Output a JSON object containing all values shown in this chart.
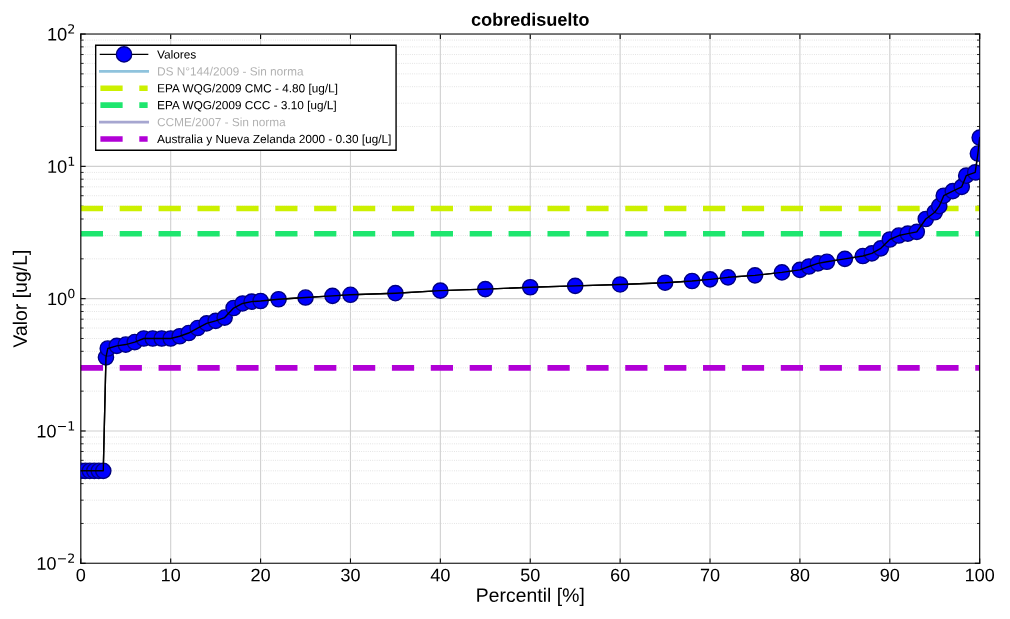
{
  "chart_data": {
    "type": "line",
    "title": "cobredisuelto",
    "xlabel": "Percentil [%]",
    "ylabel": "Valor [ug/L]",
    "log": "y",
    "grid": true,
    "legend": "top left",
    "xlim": [
      0,
      100
    ],
    "xticks": [
      0,
      10,
      20,
      30,
      40,
      50,
      60,
      70,
      80,
      90,
      100
    ],
    "ylim": [
      0.01,
      100
    ],
    "yticks": [
      {
        "value": 0.01,
        "label": "10$^{−2}$"
      },
      {
        "value": 0.1,
        "label": "10$^{−1}$"
      },
      {
        "value": 1,
        "label": "10$^{0}$"
      },
      {
        "value": 10,
        "label": "10$^{1}$"
      },
      {
        "value": 100,
        "label": "10$^{2}$"
      }
    ],
    "series": [
      {
        "name": "Valores",
        "type": "line",
        "marker": "circle",
        "color": "#0000ff",
        "x": [
          0,
          0.5,
          1,
          1.5,
          2,
          2.5,
          2.8,
          3,
          4,
          5,
          6,
          7,
          8,
          9,
          10,
          11,
          12,
          13,
          14,
          15,
          16,
          17,
          18,
          19,
          20,
          22,
          25,
          28,
          30,
          35,
          40,
          45,
          50,
          55,
          60,
          65,
          68,
          70,
          72,
          75,
          78,
          80,
          81,
          82,
          83,
          85,
          87,
          88,
          89,
          90,
          91,
          92,
          93,
          94,
          95,
          95.5,
          96,
          97,
          98,
          98.5,
          99.5,
          99.8,
          100
        ],
        "values": [
          0.05,
          0.05,
          0.05,
          0.05,
          0.05,
          0.05,
          0.36,
          0.42,
          0.44,
          0.45,
          0.47,
          0.5,
          0.5,
          0.5,
          0.5,
          0.52,
          0.55,
          0.6,
          0.65,
          0.68,
          0.72,
          0.85,
          0.92,
          0.95,
          0.96,
          0.99,
          1.02,
          1.05,
          1.07,
          1.1,
          1.15,
          1.18,
          1.22,
          1.25,
          1.28,
          1.32,
          1.36,
          1.4,
          1.45,
          1.5,
          1.58,
          1.65,
          1.75,
          1.85,
          1.9,
          2.0,
          2.1,
          2.2,
          2.4,
          2.8,
          3.0,
          3.1,
          3.2,
          4.0,
          4.5,
          5.0,
          6.0,
          6.5,
          7.0,
          8.5,
          9.0,
          12.5,
          16.5
        ]
      },
      {
        "name": "DS N°144/2009 - Sin norma",
        "type": "line",
        "color": "#8fc3dd",
        "line_style": "solid",
        "marker": "none"
      },
      {
        "name": "EPA WQG/2009 CMC - 4.80 [ug/L]",
        "type": "line",
        "color": "#ccf000",
        "line_style": "dashed",
        "marker": "none",
        "x": [
          0,
          100
        ],
        "values": [
          4.8,
          4.8
        ]
      },
      {
        "name": "EPA WQG/2009 CCC - 3.10 [ug/L]",
        "type": "line",
        "color": "#1ee66e",
        "line_style": "dashed",
        "marker": "none",
        "x": [
          0,
          100
        ],
        "values": [
          3.1,
          3.1
        ]
      },
      {
        "name": "CCME/2007 - Sin norma",
        "type": "line",
        "color": "#a6a6d0",
        "line_style": "solid",
        "marker": "none"
      },
      {
        "name": "Australia y Nueva Zelanda 2000 - 0.30 [ug/L]",
        "type": "line",
        "color": "#b100d6",
        "line_style": "dashed",
        "marker": "none",
        "x": [
          0,
          100
        ],
        "values": [
          0.3,
          0.3
        ]
      }
    ]
  }
}
